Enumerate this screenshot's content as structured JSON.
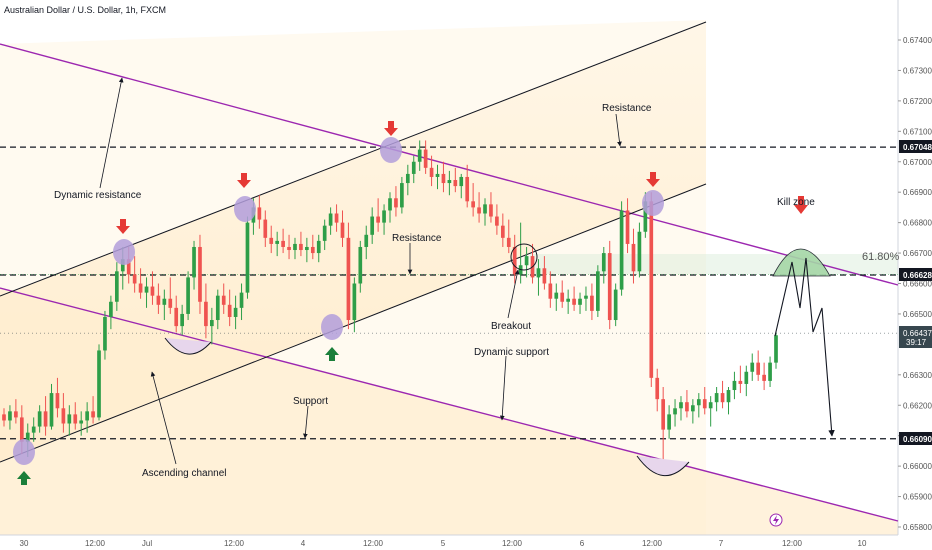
{
  "header": {
    "title": "Australian Dollar / U.S. Dollar, 1h, FXCM"
  },
  "colors": {
    "up": "#2e9e48",
    "down": "#ef5350",
    "purple": "#9c27b0",
    "zone": "#fff1d8",
    "marker_fill": "#b39ddb",
    "arrow_down": "#e53935",
    "arrow_up": "#1b7f3a"
  },
  "chart_data": {
    "type": "candlestick",
    "title": "Australian Dollar / U.S. Dollar, 1h, FXCM",
    "ylim": [
      0.658,
      0.6745
    ],
    "y_ticks": [
      "0.67400",
      "0.67300",
      "0.67200",
      "0.67100",
      "0.67000",
      "0.66900",
      "0.66800",
      "0.66700",
      "0.66600",
      "0.66500",
      "0.66300",
      "0.66200",
      "0.66100",
      "0.66000",
      "0.65900",
      "0.65800"
    ],
    "x_ticks": [
      "30",
      "12:00",
      "Jul",
      "12:00",
      "4",
      "12:00",
      "5",
      "12:00",
      "6",
      "12:00",
      "7",
      "12:00",
      "10"
    ],
    "price_levels": [
      {
        "label": "0.67048",
        "value": 0.67048
      },
      {
        "label": "0.66628",
        "value": 0.66628
      },
      {
        "label": "0.66090",
        "value": 0.6609
      }
    ],
    "current_price": {
      "label": "0.66437",
      "countdown": "39:17",
      "value": 0.66437
    },
    "fib_label": "61.80%",
    "annotations": [
      "Resistance",
      "Dynamic resistance",
      "Resistance",
      "Kill zone",
      "Breakout",
      "Dynamic support",
      "Support",
      "Ascending channel"
    ],
    "candles": [
      [
        0.6617,
        0.6619,
        0.6613,
        0.6615
      ],
      [
        0.6615,
        0.662,
        0.6612,
        0.6618
      ],
      [
        0.6618,
        0.6622,
        0.6614,
        0.6616
      ],
      [
        0.6616,
        0.662,
        0.6604,
        0.6608
      ],
      [
        0.6608,
        0.6614,
        0.6603,
        0.6611
      ],
      [
        0.6611,
        0.6616,
        0.6608,
        0.6613
      ],
      [
        0.6613,
        0.662,
        0.6611,
        0.6618
      ],
      [
        0.6618,
        0.6623,
        0.661,
        0.6613
      ],
      [
        0.6613,
        0.6627,
        0.6612,
        0.6624
      ],
      [
        0.6624,
        0.6629,
        0.6616,
        0.6619
      ],
      [
        0.6619,
        0.6624,
        0.6611,
        0.6614
      ],
      [
        0.6614,
        0.662,
        0.661,
        0.6617
      ],
      [
        0.6617,
        0.6621,
        0.6612,
        0.6614
      ],
      [
        0.6614,
        0.6618,
        0.661,
        0.6615
      ],
      [
        0.6615,
        0.6621,
        0.6611,
        0.6618
      ],
      [
        0.6618,
        0.6623,
        0.6614,
        0.6616
      ],
      [
        0.6616,
        0.664,
        0.6615,
        0.6638
      ],
      [
        0.6638,
        0.6651,
        0.6635,
        0.6649
      ],
      [
        0.6649,
        0.6656,
        0.6645,
        0.6654
      ],
      [
        0.6654,
        0.6667,
        0.6651,
        0.6664
      ],
      [
        0.6664,
        0.6672,
        0.6658,
        0.6668
      ],
      [
        0.6668,
        0.6672,
        0.666,
        0.6663
      ],
      [
        0.6663,
        0.6669,
        0.6657,
        0.666
      ],
      [
        0.666,
        0.6665,
        0.6655,
        0.6657
      ],
      [
        0.6657,
        0.6662,
        0.6652,
        0.6659
      ],
      [
        0.6659,
        0.6664,
        0.6653,
        0.6656
      ],
      [
        0.6656,
        0.666,
        0.665,
        0.6653
      ],
      [
        0.6653,
        0.6658,
        0.6648,
        0.6655
      ],
      [
        0.6655,
        0.6662,
        0.665,
        0.6652
      ],
      [
        0.6652,
        0.6656,
        0.6644,
        0.6646
      ],
      [
        0.6646,
        0.6653,
        0.6643,
        0.665
      ],
      [
        0.665,
        0.6664,
        0.6648,
        0.6662
      ],
      [
        0.6662,
        0.6674,
        0.6658,
        0.6672
      ],
      [
        0.6672,
        0.6676,
        0.665,
        0.6654
      ],
      [
        0.6654,
        0.666,
        0.6642,
        0.6646
      ],
      [
        0.6646,
        0.6652,
        0.664,
        0.6648
      ],
      [
        0.6648,
        0.6658,
        0.6645,
        0.6656
      ],
      [
        0.6656,
        0.666,
        0.665,
        0.6653
      ],
      [
        0.6653,
        0.6658,
        0.6646,
        0.6649
      ],
      [
        0.6649,
        0.6656,
        0.6645,
        0.6652
      ],
      [
        0.6652,
        0.666,
        0.6648,
        0.6657
      ],
      [
        0.6657,
        0.6682,
        0.6655,
        0.668
      ],
      [
        0.668,
        0.6688,
        0.6676,
        0.6685
      ],
      [
        0.6685,
        0.6689,
        0.6678,
        0.6681
      ],
      [
        0.6681,
        0.6684,
        0.6672,
        0.6675
      ],
      [
        0.6675,
        0.6679,
        0.667,
        0.6673
      ],
      [
        0.6673,
        0.6677,
        0.6669,
        0.6674
      ],
      [
        0.6674,
        0.6678,
        0.667,
        0.6672
      ],
      [
        0.6672,
        0.6676,
        0.6668,
        0.6671
      ],
      [
        0.6671,
        0.6675,
        0.6668,
        0.6673
      ],
      [
        0.6673,
        0.6677,
        0.6669,
        0.6671
      ],
      [
        0.6671,
        0.6675,
        0.6667,
        0.6672
      ],
      [
        0.6672,
        0.6676,
        0.6668,
        0.667
      ],
      [
        0.667,
        0.6676,
        0.6667,
        0.6674
      ],
      [
        0.6674,
        0.6681,
        0.6671,
        0.6679
      ],
      [
        0.6679,
        0.6685,
        0.6676,
        0.6683
      ],
      [
        0.6683,
        0.6686,
        0.6677,
        0.668
      ],
      [
        0.668,
        0.6684,
        0.6672,
        0.6675
      ],
      [
        0.6675,
        0.668,
        0.6645,
        0.6648
      ],
      [
        0.6648,
        0.6662,
        0.6644,
        0.666
      ],
      [
        0.666,
        0.6674,
        0.6657,
        0.6672
      ],
      [
        0.6672,
        0.6679,
        0.6668,
        0.6676
      ],
      [
        0.6676,
        0.6685,
        0.6673,
        0.6682
      ],
      [
        0.6682,
        0.6688,
        0.6677,
        0.668
      ],
      [
        0.668,
        0.6686,
        0.6676,
        0.6684
      ],
      [
        0.6684,
        0.669,
        0.668,
        0.6688
      ],
      [
        0.6688,
        0.6692,
        0.6682,
        0.6685
      ],
      [
        0.6685,
        0.6695,
        0.6683,
        0.6693
      ],
      [
        0.6693,
        0.6699,
        0.6689,
        0.6696
      ],
      [
        0.6696,
        0.6702,
        0.6693,
        0.67
      ],
      [
        0.67,
        0.6707,
        0.6697,
        0.6704
      ],
      [
        0.6704,
        0.6707,
        0.6696,
        0.6698
      ],
      [
        0.6698,
        0.6702,
        0.6692,
        0.6695
      ],
      [
        0.6695,
        0.6699,
        0.6691,
        0.6696
      ],
      [
        0.6696,
        0.67,
        0.669,
        0.6693
      ],
      [
        0.6693,
        0.6697,
        0.6689,
        0.6694
      ],
      [
        0.6694,
        0.6698,
        0.669,
        0.6692
      ],
      [
        0.6692,
        0.6696,
        0.6688,
        0.6695
      ],
      [
        0.6695,
        0.6699,
        0.6685,
        0.6687
      ],
      [
        0.6687,
        0.6693,
        0.6682,
        0.6685
      ],
      [
        0.6685,
        0.669,
        0.668,
        0.6683
      ],
      [
        0.6683,
        0.6688,
        0.6679,
        0.6686
      ],
      [
        0.6686,
        0.669,
        0.668,
        0.6682
      ],
      [
        0.6682,
        0.6686,
        0.6676,
        0.6679
      ],
      [
        0.6679,
        0.6683,
        0.6672,
        0.6675
      ],
      [
        0.6675,
        0.6681,
        0.667,
        0.6672
      ],
      [
        0.6672,
        0.6676,
        0.666,
        0.6663
      ],
      [
        0.6663,
        0.668,
        0.666,
        0.6666
      ],
      [
        0.6666,
        0.6672,
        0.6662,
        0.6669
      ],
      [
        0.6669,
        0.6673,
        0.666,
        0.6662
      ],
      [
        0.6662,
        0.6668,
        0.6656,
        0.6665
      ],
      [
        0.6665,
        0.6669,
        0.6658,
        0.666
      ],
      [
        0.666,
        0.6664,
        0.6652,
        0.6655
      ],
      [
        0.6655,
        0.666,
        0.6651,
        0.6657
      ],
      [
        0.6657,
        0.6661,
        0.6652,
        0.6654
      ],
      [
        0.6654,
        0.6658,
        0.665,
        0.6655
      ],
      [
        0.6655,
        0.6659,
        0.6651,
        0.6653
      ],
      [
        0.6653,
        0.6657,
        0.665,
        0.6655
      ],
      [
        0.6655,
        0.6659,
        0.6651,
        0.6656
      ],
      [
        0.6656,
        0.666,
        0.6648,
        0.6651
      ],
      [
        0.6651,
        0.6666,
        0.6649,
        0.6664
      ],
      [
        0.6664,
        0.6672,
        0.666,
        0.667
      ],
      [
        0.667,
        0.6674,
        0.6645,
        0.6648
      ],
      [
        0.6648,
        0.666,
        0.6646,
        0.6658
      ],
      [
        0.6658,
        0.6687,
        0.6656,
        0.6684
      ],
      [
        0.6684,
        0.6688,
        0.667,
        0.6673
      ],
      [
        0.6673,
        0.6678,
        0.666,
        0.6664
      ],
      [
        0.6664,
        0.668,
        0.6662,
        0.6677
      ],
      [
        0.6677,
        0.669,
        0.6675,
        0.6687
      ],
      [
        0.6687,
        0.669,
        0.6626,
        0.6629
      ],
      [
        0.6629,
        0.6632,
        0.6618,
        0.6622
      ],
      [
        0.6622,
        0.6626,
        0.6601,
        0.6612
      ],
      [
        0.6612,
        0.662,
        0.6609,
        0.6617
      ],
      [
        0.6617,
        0.6622,
        0.6613,
        0.6619
      ],
      [
        0.6619,
        0.6623,
        0.6615,
        0.6621
      ],
      [
        0.6621,
        0.6625,
        0.6616,
        0.6618
      ],
      [
        0.6618,
        0.6622,
        0.6614,
        0.662
      ],
      [
        0.662,
        0.6624,
        0.6616,
        0.6622
      ],
      [
        0.6622,
        0.6626,
        0.6617,
        0.6619
      ],
      [
        0.6619,
        0.6623,
        0.6613,
        0.6621
      ],
      [
        0.6621,
        0.6626,
        0.6618,
        0.6624
      ],
      [
        0.6624,
        0.6628,
        0.6619,
        0.6621
      ],
      [
        0.6621,
        0.6626,
        0.6617,
        0.6625
      ],
      [
        0.6625,
        0.6631,
        0.6622,
        0.6628
      ],
      [
        0.6628,
        0.6633,
        0.6624,
        0.6627
      ],
      [
        0.6627,
        0.6633,
        0.6623,
        0.6631
      ],
      [
        0.6631,
        0.6637,
        0.6628,
        0.6634
      ],
      [
        0.6634,
        0.6638,
        0.6628,
        0.663
      ],
      [
        0.663,
        0.6634,
        0.6625,
        0.6628
      ],
      [
        0.6628,
        0.6636,
        0.6626,
        0.6634
      ],
      [
        0.6634,
        0.6644,
        0.6632,
        0.6643
      ]
    ]
  }
}
